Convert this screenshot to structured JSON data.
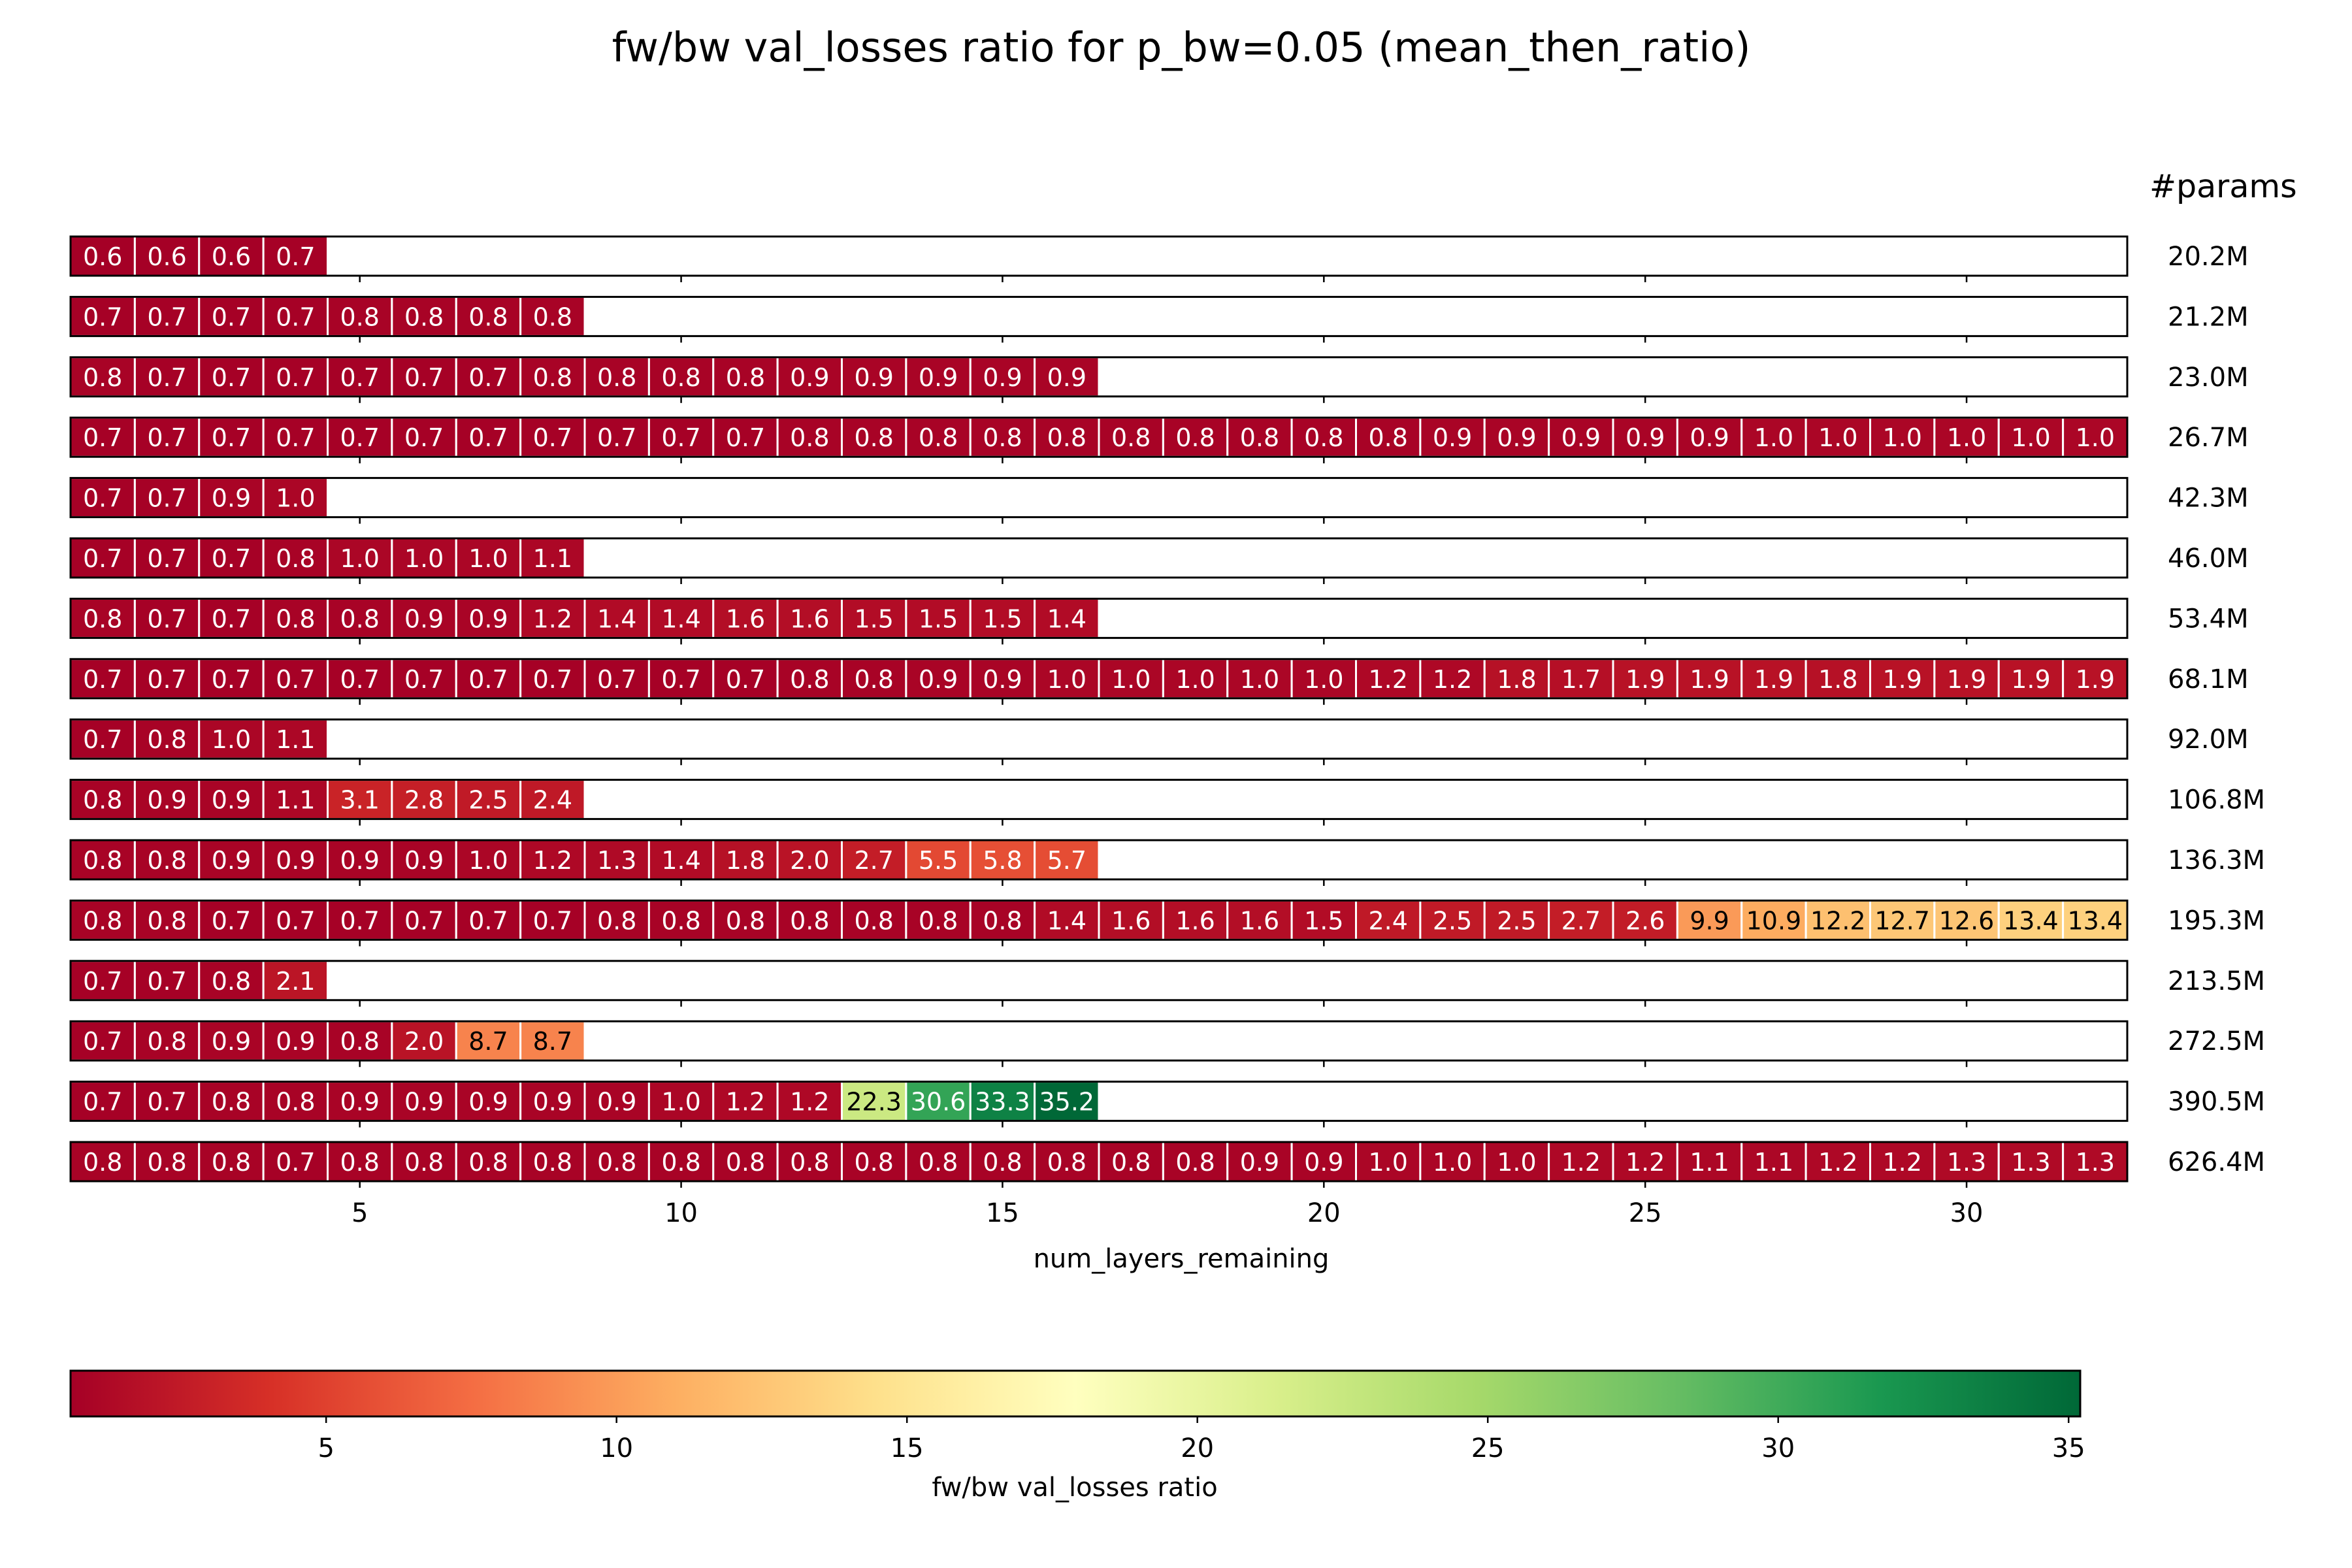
{
  "chart_data": {
    "type": "heatmap",
    "title": "fw/bw val_losses ratio for p_bw=0.05 (mean_then_ratio)",
    "xlabel": "num_layers_remaining",
    "x_ticks": [
      5,
      10,
      15,
      20,
      25,
      30
    ],
    "xlim": [
      0.5,
      32.5
    ],
    "colormap": "RdYlGn",
    "color_range": [
      0.6,
      35.2
    ],
    "colorbar": {
      "label": "fw/bw val_losses ratio",
      "ticks": [
        5,
        10,
        15,
        20,
        25,
        30,
        35
      ]
    },
    "row_header": "#params",
    "rows": [
      {
        "params": "20.2M",
        "values": [
          0.6,
          0.6,
          0.6,
          0.7
        ]
      },
      {
        "params": "21.2M",
        "values": [
          0.7,
          0.7,
          0.7,
          0.7,
          0.8,
          0.8,
          0.8,
          0.8
        ]
      },
      {
        "params": "23.0M",
        "values": [
          0.8,
          0.7,
          0.7,
          0.7,
          0.7,
          0.7,
          0.7,
          0.8,
          0.8,
          0.8,
          0.8,
          0.9,
          0.9,
          0.9,
          0.9,
          0.9
        ]
      },
      {
        "params": "26.7M",
        "values": [
          0.7,
          0.7,
          0.7,
          0.7,
          0.7,
          0.7,
          0.7,
          0.7,
          0.7,
          0.7,
          0.7,
          0.8,
          0.8,
          0.8,
          0.8,
          0.8,
          0.8,
          0.8,
          0.8,
          0.8,
          0.8,
          0.9,
          0.9,
          0.9,
          0.9,
          0.9,
          1.0,
          1.0,
          1.0,
          1.0,
          1.0,
          1.0
        ]
      },
      {
        "params": "42.3M",
        "values": [
          0.7,
          0.7,
          0.9,
          1.0
        ]
      },
      {
        "params": "46.0M",
        "values": [
          0.7,
          0.7,
          0.7,
          0.8,
          1.0,
          1.0,
          1.0,
          1.1
        ]
      },
      {
        "params": "53.4M",
        "values": [
          0.8,
          0.7,
          0.7,
          0.8,
          0.8,
          0.9,
          0.9,
          1.2,
          1.4,
          1.4,
          1.6,
          1.6,
          1.5,
          1.5,
          1.5,
          1.4
        ]
      },
      {
        "params": "68.1M",
        "values": [
          0.7,
          0.7,
          0.7,
          0.7,
          0.7,
          0.7,
          0.7,
          0.7,
          0.7,
          0.7,
          0.7,
          0.8,
          0.8,
          0.9,
          0.9,
          1.0,
          1.0,
          1.0,
          1.0,
          1.0,
          1.2,
          1.2,
          1.8,
          1.7,
          1.9,
          1.9,
          1.9,
          1.8,
          1.9,
          1.9,
          1.9,
          1.9
        ]
      },
      {
        "params": "92.0M",
        "values": [
          0.7,
          0.8,
          1.0,
          1.1
        ]
      },
      {
        "params": "106.8M",
        "values": [
          0.8,
          0.9,
          0.9,
          1.1,
          3.1,
          2.8,
          2.5,
          2.4
        ]
      },
      {
        "params": "136.3M",
        "values": [
          0.8,
          0.8,
          0.9,
          0.9,
          0.9,
          0.9,
          1.0,
          1.2,
          1.3,
          1.4,
          1.8,
          2.0,
          2.7,
          5.5,
          5.8,
          5.7
        ]
      },
      {
        "params": "195.3M",
        "values": [
          0.8,
          0.8,
          0.7,
          0.7,
          0.7,
          0.7,
          0.7,
          0.7,
          0.8,
          0.8,
          0.8,
          0.8,
          0.8,
          0.8,
          0.8,
          1.4,
          1.6,
          1.6,
          1.6,
          1.5,
          2.4,
          2.5,
          2.5,
          2.7,
          2.6,
          9.9,
          10.9,
          12.2,
          12.7,
          12.6,
          13.4,
          13.4
        ]
      },
      {
        "params": "213.5M",
        "values": [
          0.7,
          0.7,
          0.8,
          2.1
        ]
      },
      {
        "params": "272.5M",
        "values": [
          0.7,
          0.8,
          0.9,
          0.9,
          0.8,
          2.0,
          8.7,
          8.7
        ]
      },
      {
        "params": "390.5M",
        "values": [
          0.7,
          0.7,
          0.8,
          0.8,
          0.9,
          0.9,
          0.9,
          0.9,
          0.9,
          1.0,
          1.2,
          1.2,
          22.3,
          30.6,
          33.3,
          35.2
        ]
      },
      {
        "params": "626.4M",
        "values": [
          0.8,
          0.8,
          0.8,
          0.7,
          0.8,
          0.8,
          0.8,
          0.8,
          0.8,
          0.8,
          0.8,
          0.8,
          0.8,
          0.8,
          0.8,
          0.8,
          0.8,
          0.8,
          0.9,
          0.9,
          1.0,
          1.0,
          1.0,
          1.2,
          1.2,
          1.1,
          1.1,
          1.2,
          1.2,
          1.3,
          1.3,
          1.3
        ]
      }
    ]
  }
}
